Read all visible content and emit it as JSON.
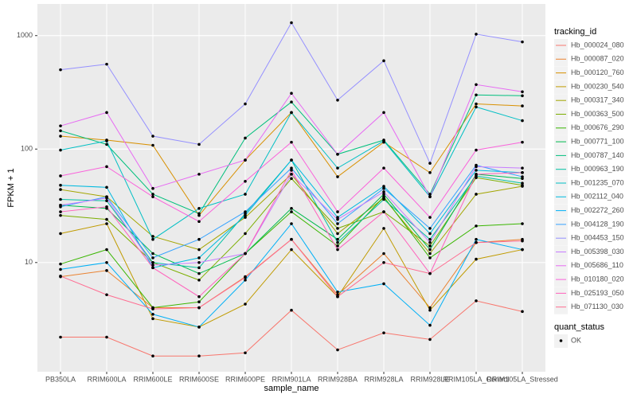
{
  "chart_data": {
    "type": "line",
    "x_label": "sample_name",
    "y_label": "FPKM + 1",
    "categories": [
      "PB350LA",
      "RRIM600LA",
      "RRIM600LE",
      "RRIM600SE",
      "RRIM600PE",
      "RRIM901LA",
      "RRIM928BA",
      "RRIM928LA",
      "RRIM928LE",
      "RRIM105LA_Control",
      "RRIM105LA_Stressed"
    ],
    "ylim": [
      1.09,
      1900
    ],
    "yticks": [
      10,
      100,
      1000
    ],
    "log_y": true,
    "grid": true,
    "legend_position": "right",
    "legend_title": "tracking_id",
    "point_legend": {
      "title": "quant_status",
      "labels": [
        "OK"
      ],
      "color": "#000000"
    },
    "series": [
      {
        "name": "Hb_000024_080",
        "color": "#F8766D",
        "values": [
          2.2,
          2.2,
          1.5,
          1.5,
          1.6,
          3.8,
          1.7,
          2.4,
          2.1,
          4.6,
          3.7
        ]
      },
      {
        "name": "Hb_000087_020",
        "color": "#EA8331",
        "values": [
          7.5,
          8.5,
          4,
          4,
          7.5,
          16,
          5.2,
          12,
          4,
          15,
          16
        ]
      },
      {
        "name": "Hb_000120_760",
        "color": "#D89000",
        "values": [
          130,
          120,
          108,
          26,
          80,
          210,
          57,
          115,
          62,
          250,
          240
        ]
      },
      {
        "name": "Hb_000230_540",
        "color": "#C09B00",
        "values": [
          18,
          22,
          3.2,
          2.7,
          4.3,
          13,
          5,
          20,
          3.8,
          10.7,
          13
        ]
      },
      {
        "name": "Hb_000317_340",
        "color": "#A3A500",
        "values": [
          44,
          38,
          17,
          13,
          25,
          60,
          18,
          37,
          12,
          40,
          47
        ]
      },
      {
        "name": "Hb_000363_500",
        "color": "#7CAE00",
        "values": [
          26,
          24,
          10,
          7,
          18,
          55,
          20,
          28,
          14,
          56,
          48
        ]
      },
      {
        "name": "Hb_000676_290",
        "color": "#39B600",
        "values": [
          9.7,
          13,
          4,
          4.5,
          12,
          28,
          14,
          38,
          11,
          21,
          22
        ]
      },
      {
        "name": "Hb_000771_100",
        "color": "#00BB4E",
        "values": [
          32,
          30,
          12,
          8,
          12,
          30,
          16,
          40,
          13,
          60,
          55
        ]
      },
      {
        "name": "Hb_000787_140",
        "color": "#00BF7D",
        "values": [
          145,
          110,
          40,
          27,
          125,
          260,
          90,
          120,
          40,
          300,
          295
        ]
      },
      {
        "name": "Hb_000963_190",
        "color": "#00C1A3",
        "values": [
          36,
          35,
          10,
          9,
          27,
          80,
          15,
          36,
          16,
          58,
          50
        ]
      },
      {
        "name": "Hb_001235_070",
        "color": "#00BFC4",
        "values": [
          98,
          118,
          16,
          30,
          40,
          210,
          68,
          118,
          38,
          235,
          178
        ]
      },
      {
        "name": "Hb_002112_040",
        "color": "#00BAE0",
        "values": [
          48,
          46,
          9,
          11,
          26,
          80,
          25,
          47,
          18,
          65,
          62
        ]
      },
      {
        "name": "Hb_002272_260",
        "color": "#00B0F6",
        "values": [
          8.7,
          10,
          3.5,
          2.7,
          7,
          22,
          5.5,
          6.5,
          2.8,
          16,
          13
        ]
      },
      {
        "name": "Hb_004128_190",
        "color": "#35A2FF",
        "values": [
          31,
          38,
          11,
          16,
          28,
          68,
          22,
          45,
          20,
          72,
          57
        ]
      },
      {
        "name": "Hb_004453_150",
        "color": "#9590FF",
        "values": [
          500,
          560,
          130,
          110,
          250,
          1300,
          270,
          600,
          75,
          1030,
          880
        ]
      },
      {
        "name": "Hb_005398_030",
        "color": "#C77CFF",
        "values": [
          32,
          37,
          9.5,
          10,
          12,
          60,
          24,
          42,
          15,
          70,
          68
        ]
      },
      {
        "name": "Hb_005686_110",
        "color": "#E76BF3",
        "values": [
          160,
          210,
          45,
          60,
          80,
          310,
          90,
          210,
          38,
          370,
          320
        ]
      },
      {
        "name": "Hb_010180_020",
        "color": "#FA62DB",
        "values": [
          58,
          70,
          38,
          23,
          52,
          115,
          28,
          68,
          25,
          98,
          115
        ]
      },
      {
        "name": "Hb_025193_050",
        "color": "#FF62BC",
        "values": [
          28,
          31,
          9,
          5,
          12,
          65,
          13,
          28,
          8,
          60,
          62
        ]
      },
      {
        "name": "Hb_071130_030",
        "color": "#FF6C91",
        "values": [
          7.6,
          5.2,
          3.9,
          4,
          7.4,
          16,
          5,
          10,
          8,
          15,
          15.5
        ]
      }
    ]
  }
}
